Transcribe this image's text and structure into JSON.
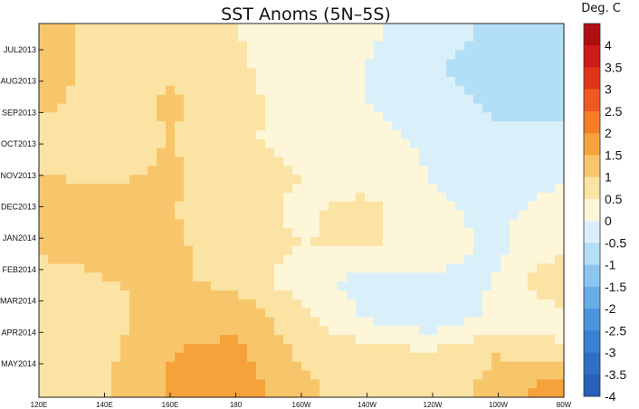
{
  "chart_data": {
    "type": "heatmap",
    "title": "SST Anoms (5N–5S)",
    "colorbar_unit": "Deg. C",
    "x_tick_labels": [
      "120E",
      "140E",
      "160E",
      "180",
      "160W",
      "140W",
      "120W",
      "100W",
      "80W"
    ],
    "x_range_deg_east": [
      120,
      280
    ],
    "y_tick_labels": [
      "JUL2013",
      "AUG2013",
      "SEP2013",
      "OCT2013",
      "NOV2013",
      "DEC2013",
      "JAN2014",
      "FEB2014",
      "MAR2014",
      "APR2014",
      "MAY2014"
    ],
    "colorbar_labels": [
      "4",
      "3.5",
      "3",
      "2.5",
      "2",
      "1.5",
      "1",
      "0.5",
      "0",
      "-0.5",
      "-1",
      "-1.5",
      "-2",
      "-2.5",
      "-3",
      "-3.5",
      "-4"
    ],
    "colorbar_colors": [
      "#b00f12",
      "#cd1b17",
      "#e0351a",
      "#ee5a22",
      "#f47d26",
      "#f6a23a",
      "#f8c66a",
      "#fbe3a3",
      "#fdf6d9",
      "#d9f0fb",
      "#b3def7",
      "#8cc6f0",
      "#68ace6",
      "#4b94dd",
      "#3a80d2",
      "#2f6fc6",
      "#285fba"
    ],
    "field_description_grid": {
      "lon": [
        120,
        140,
        160,
        180,
        200,
        220,
        240,
        260,
        280
      ],
      "time": [
        "JUL2013",
        "AUG2013",
        "SEP2013",
        "OCT2013",
        "NOV2013",
        "DEC2013",
        "JAN2014",
        "FEB2014",
        "MAR2014",
        "APR2014",
        "MAY2014"
      ],
      "values": [
        [
          0.6,
          0.4,
          0.3,
          0.0,
          -0.2,
          -0.4,
          -0.8,
          -1.1,
          -1.4
        ],
        [
          0.7,
          0.3,
          0.4,
          0.1,
          -0.3,
          -0.5,
          -0.9,
          -1.3,
          -1.3
        ],
        [
          0.6,
          0.3,
          0.6,
          0.1,
          -0.1,
          -0.5,
          -0.7,
          -1.1,
          -1.2
        ],
        [
          0.3,
          0.3,
          0.5,
          0.1,
          -0.2,
          -0.3,
          -0.6,
          -0.9,
          -0.8
        ],
        [
          0.5,
          0.4,
          0.6,
          0.2,
          0.0,
          -0.3,
          -0.5,
          -0.9,
          -0.6
        ],
        [
          0.7,
          0.8,
          0.5,
          0.2,
          -0.1,
          0.2,
          -0.4,
          -0.6,
          -0.3
        ],
        [
          0.6,
          0.7,
          0.6,
          0.2,
          0.0,
          0.1,
          -0.3,
          -0.6,
          -0.2
        ],
        [
          0.3,
          0.5,
          0.6,
          0.3,
          -0.3,
          -0.7,
          -0.6,
          -0.5,
          0.5
        ],
        [
          0.2,
          0.3,
          0.8,
          0.9,
          0.1,
          -0.6,
          -0.9,
          -0.4,
          -0.2
        ],
        [
          0.2,
          0.4,
          1.0,
          1.1,
          0.4,
          0.2,
          0.0,
          0.5,
          0.1
        ],
        [
          0.4,
          0.5,
          1.1,
          1.3,
          0.6,
          0.3,
          0.3,
          0.6,
          1.3
        ]
      ]
    }
  }
}
